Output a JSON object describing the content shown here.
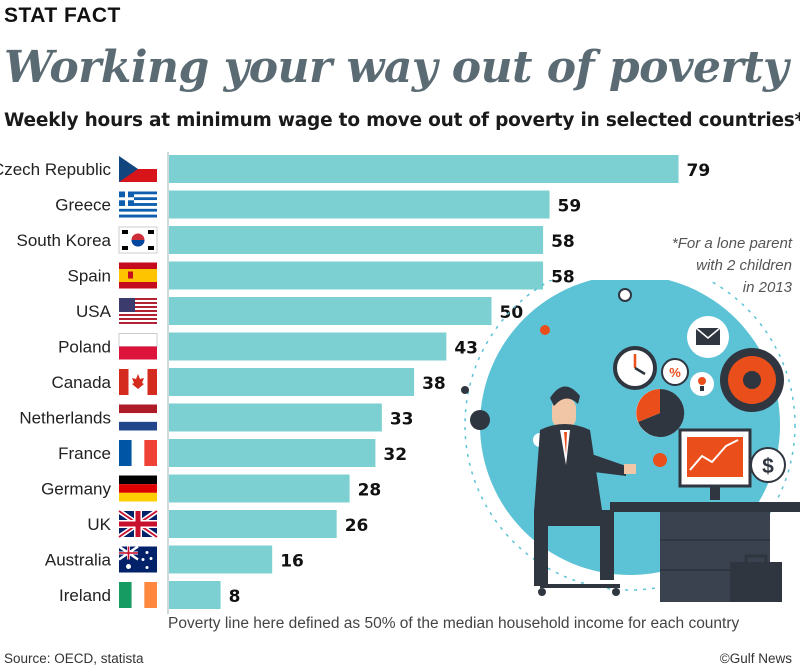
{
  "header": {
    "tag": "STAT FACT",
    "title": "Working your way out of poverty",
    "subtitle": "Weekly hours at minimum wage to move out of poverty in selected countries*"
  },
  "note": {
    "lines": [
      "*For a lone parent",
      "with 2 children",
      "in 2013"
    ]
  },
  "footnote": "Poverty line here defined as 50% of the median household income for each country",
  "source": "Source: OECD, statista",
  "credit": "©Gulf News",
  "colors": {
    "bar": "#7dd0d1",
    "title": "#5b6b73",
    "accent": "#e94e1b"
  },
  "chart_data": {
    "type": "bar",
    "orientation": "horizontal",
    "title": "Weekly hours at minimum wage to move out of poverty in selected countries*",
    "categories": [
      "Czech Republic",
      "Greece",
      "South Korea",
      "Spain",
      "USA",
      "Poland",
      "Canada",
      "Netherlands",
      "France",
      "Germany",
      "UK",
      "Australia",
      "Ireland"
    ],
    "values": [
      79,
      59,
      58,
      58,
      50,
      43,
      38,
      33,
      32,
      28,
      26,
      16,
      8
    ],
    "flags": [
      "czech-flag-icon",
      "greece-flag-icon",
      "south-korea-flag-icon",
      "spain-flag-icon",
      "usa-flag-icon",
      "poland-flag-icon",
      "canada-flag-icon",
      "netherlands-flag-icon",
      "france-flag-icon",
      "germany-flag-icon",
      "uk-flag-icon",
      "australia-flag-icon",
      "ireland-flag-icon"
    ],
    "data_labels": true,
    "grid": false
  }
}
